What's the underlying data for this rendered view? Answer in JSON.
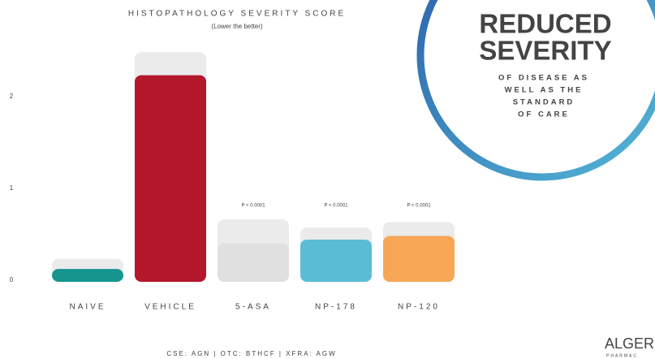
{
  "chart_data": {
    "type": "bar",
    "title": "HISTOPATHOLOGY SEVERITY SCORE",
    "subtitle": "(Lower the better)",
    "categories": [
      "NAIVE",
      "VEHICLE",
      "5-ASA",
      "NP-178",
      "NP-120"
    ],
    "values": [
      0.14,
      2.25,
      0.42,
      0.46,
      0.5
    ],
    "errors": [
      0.11,
      0.25,
      0.26,
      0.13,
      0.15
    ],
    "colors": [
      "#15958e",
      "#b3172b",
      "#e0e0e0",
      "#5bbcd5",
      "#f7a655"
    ],
    "error_color": "#ebebeb",
    "annotations": [
      {
        "category": "5-ASA",
        "text": "P < 0.0001"
      },
      {
        "category": "NP-178",
        "text": "P < 0.0001"
      },
      {
        "category": "NP-120",
        "text": "P < 0.0001"
      }
    ],
    "ylim": [
      0,
      2.6
    ],
    "yticks": [
      0,
      1,
      2
    ],
    "grid": false,
    "callout": {
      "title": [
        "REDUCED",
        "SEVERITY"
      ],
      "text": [
        "OF DISEASE AS",
        "WELL AS THE",
        "STANDARD",
        "OF CARE"
      ]
    },
    "footer": "CSE: AGN | OTC: BTHCF | XFRA: AGW",
    "logo": {
      "name": "ALGER",
      "sub": "PHARMAC"
    }
  }
}
